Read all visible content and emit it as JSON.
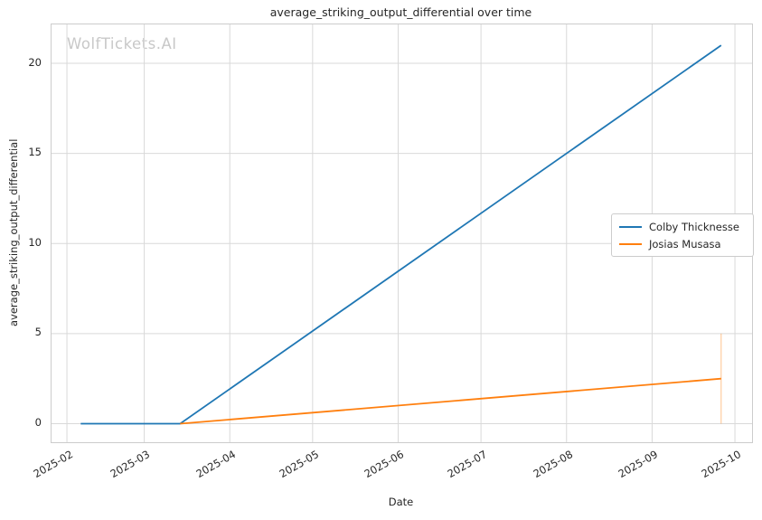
{
  "watermark": "WolfTickets.AI",
  "colors": {
    "background": "#ffffff",
    "grid": "#d9d9d9",
    "spine": "#cccccc",
    "text": "#262626",
    "watermark": "#c8c8c8"
  },
  "chart_data": {
    "type": "line",
    "title": "average_striking_output_differential over time",
    "xlabel": "Date",
    "ylabel": "average_striking_output_differential",
    "grid": true,
    "legend_position": "center-right",
    "x_tick_labels": [
      "2025-02",
      "2025-03",
      "2025-04",
      "2025-05",
      "2025-06",
      "2025-07",
      "2025-08",
      "2025-09",
      "2025-10"
    ],
    "y_tick_labels": [
      0,
      5,
      10,
      15,
      20
    ],
    "x_range": [
      "2025-01-26T10:00:00Z",
      "2025-10-07T05:00:00Z"
    ],
    "y_range": [
      -1.03,
      22.16
    ],
    "series": [
      {
        "name": "Colby Thicknesse",
        "color": "#1f77b4",
        "points": [
          [
            "2025-02-06",
            0
          ],
          [
            "2025-03-14",
            0
          ],
          [
            "2025-09-26",
            21
          ]
        ]
      },
      {
        "name": "Josias Musasa",
        "color": "#ff7f0e",
        "points": [
          [
            "2025-03-14",
            0
          ],
          [
            "2025-09-26",
            2.5
          ]
        ],
        "error_bar": {
          "x": "2025-09-26",
          "y_low": 0,
          "y_high": 5,
          "opacity": 0.4
        }
      }
    ]
  }
}
